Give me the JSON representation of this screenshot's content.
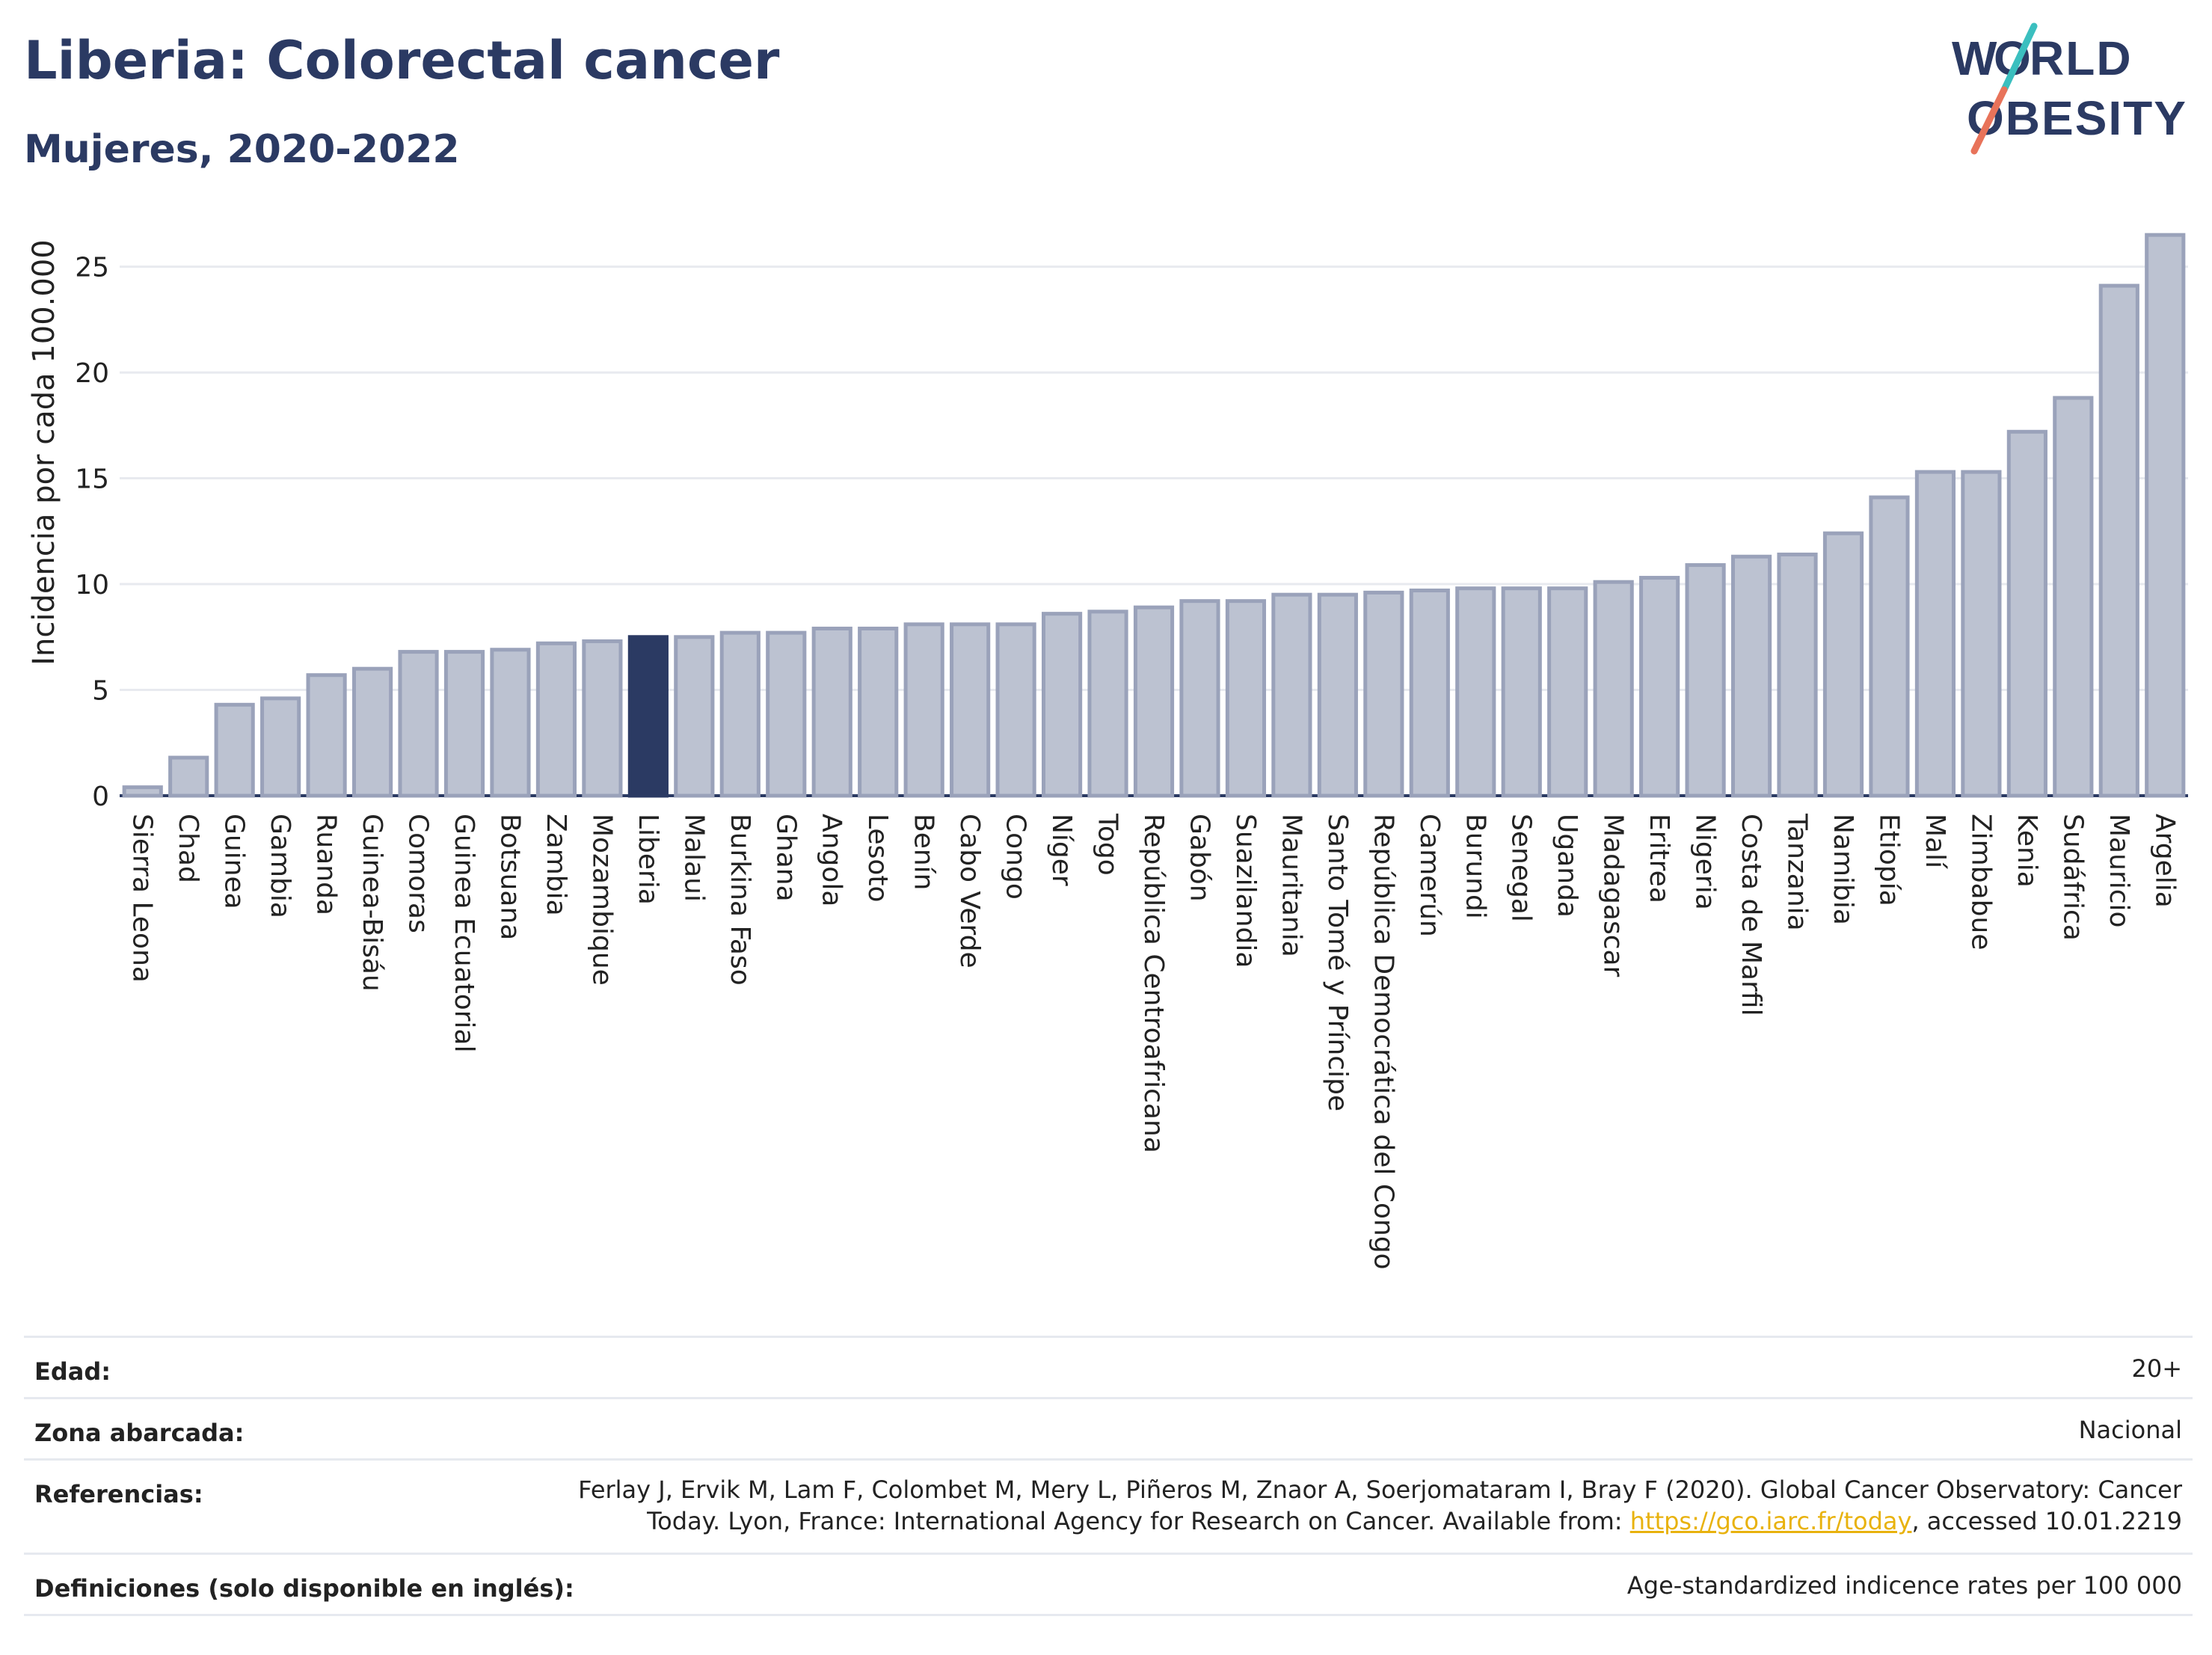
{
  "header": {
    "title": "Liberia: Colorectal cancer",
    "subtitle": "Mujeres, 2020-2022"
  },
  "logo": {
    "line1": "WORLD",
    "line2": "OBESITY",
    "colors": {
      "text": "#2b3a63",
      "slash_top": "#3bbfbf",
      "slash_bottom": "#e8735a"
    }
  },
  "colors": {
    "bar": "#bcc2d1",
    "bar_stroke": "#9aa2ba",
    "highlight": "#2b3a63",
    "axis": "#2b3a63",
    "grid": "#e8eaef"
  },
  "chart_data": {
    "type": "bar",
    "ylabel": "Incidencia por cada 100.000",
    "ylim": [
      0,
      27
    ],
    "yticks": [
      0,
      5,
      10,
      15,
      20,
      25
    ],
    "grid": true,
    "highlight": "Liberia",
    "categories": [
      "Sierra Leona",
      "Chad",
      "Guinea",
      "Gambia",
      "Ruanda",
      "Guinea-Bisáu",
      "Comoras",
      "Guinea Ecuatorial",
      "Botsuana",
      "Zambia",
      "Mozambique",
      "Liberia",
      "Malaui",
      "Burkina Faso",
      "Ghana",
      "Angola",
      "Lesoto",
      "Benín",
      "Cabo Verde",
      "Congo",
      "Níger",
      "Togo",
      "República Centroafricana",
      "Gabón",
      "Suazilandia",
      "Mauritania",
      "Santo Tomé y Príncipe",
      "República Democrática del Congo",
      "Camerún",
      "Burundi",
      "Senegal",
      "Uganda",
      "Madagascar",
      "Eritrea",
      "Nigeria",
      "Costa de Marfil",
      "Tanzania",
      "Namibia",
      "Etiopía",
      "Malí",
      "Zimbabue",
      "Kenia",
      "Sudáfrica",
      "Mauricio",
      "Argelia"
    ],
    "values": [
      0.4,
      1.8,
      4.3,
      4.6,
      5.7,
      6.0,
      6.8,
      6.8,
      6.9,
      7.2,
      7.3,
      7.5,
      7.5,
      7.7,
      7.7,
      7.9,
      7.9,
      8.1,
      8.1,
      8.1,
      8.6,
      8.7,
      8.9,
      9.2,
      9.2,
      9.5,
      9.5,
      9.6,
      9.7,
      9.8,
      9.8,
      9.8,
      10.1,
      10.3,
      10.9,
      11.3,
      11.4,
      12.4,
      14.1,
      15.3,
      15.3,
      17.2,
      18.8,
      24.1,
      26.5
    ]
  },
  "meta": {
    "rows": [
      {
        "label": "Edad:",
        "value": "20+"
      },
      {
        "label": "Zona abarcada:",
        "value": "Nacional"
      },
      {
        "label": "Referencias:",
        "value_line1": "Ferlay J, Ervik M, Lam F, Colombet M, Mery L, Piñeros M, Znaor A, Soerjomataram I, Bray F (2020). Global Cancer Observatory: Cancer",
        "value_line2_pre": "Today. Lyon, France: International Agency for Research on Cancer. Available from: ",
        "value_link": "https://gco.iarc.fr/today",
        "value_line2_post": ", accessed 10.01.2219"
      },
      {
        "label": "Definiciones (solo disponible en inglés):",
        "value": "Age-standardized indicence rates per 100 000"
      }
    ]
  }
}
